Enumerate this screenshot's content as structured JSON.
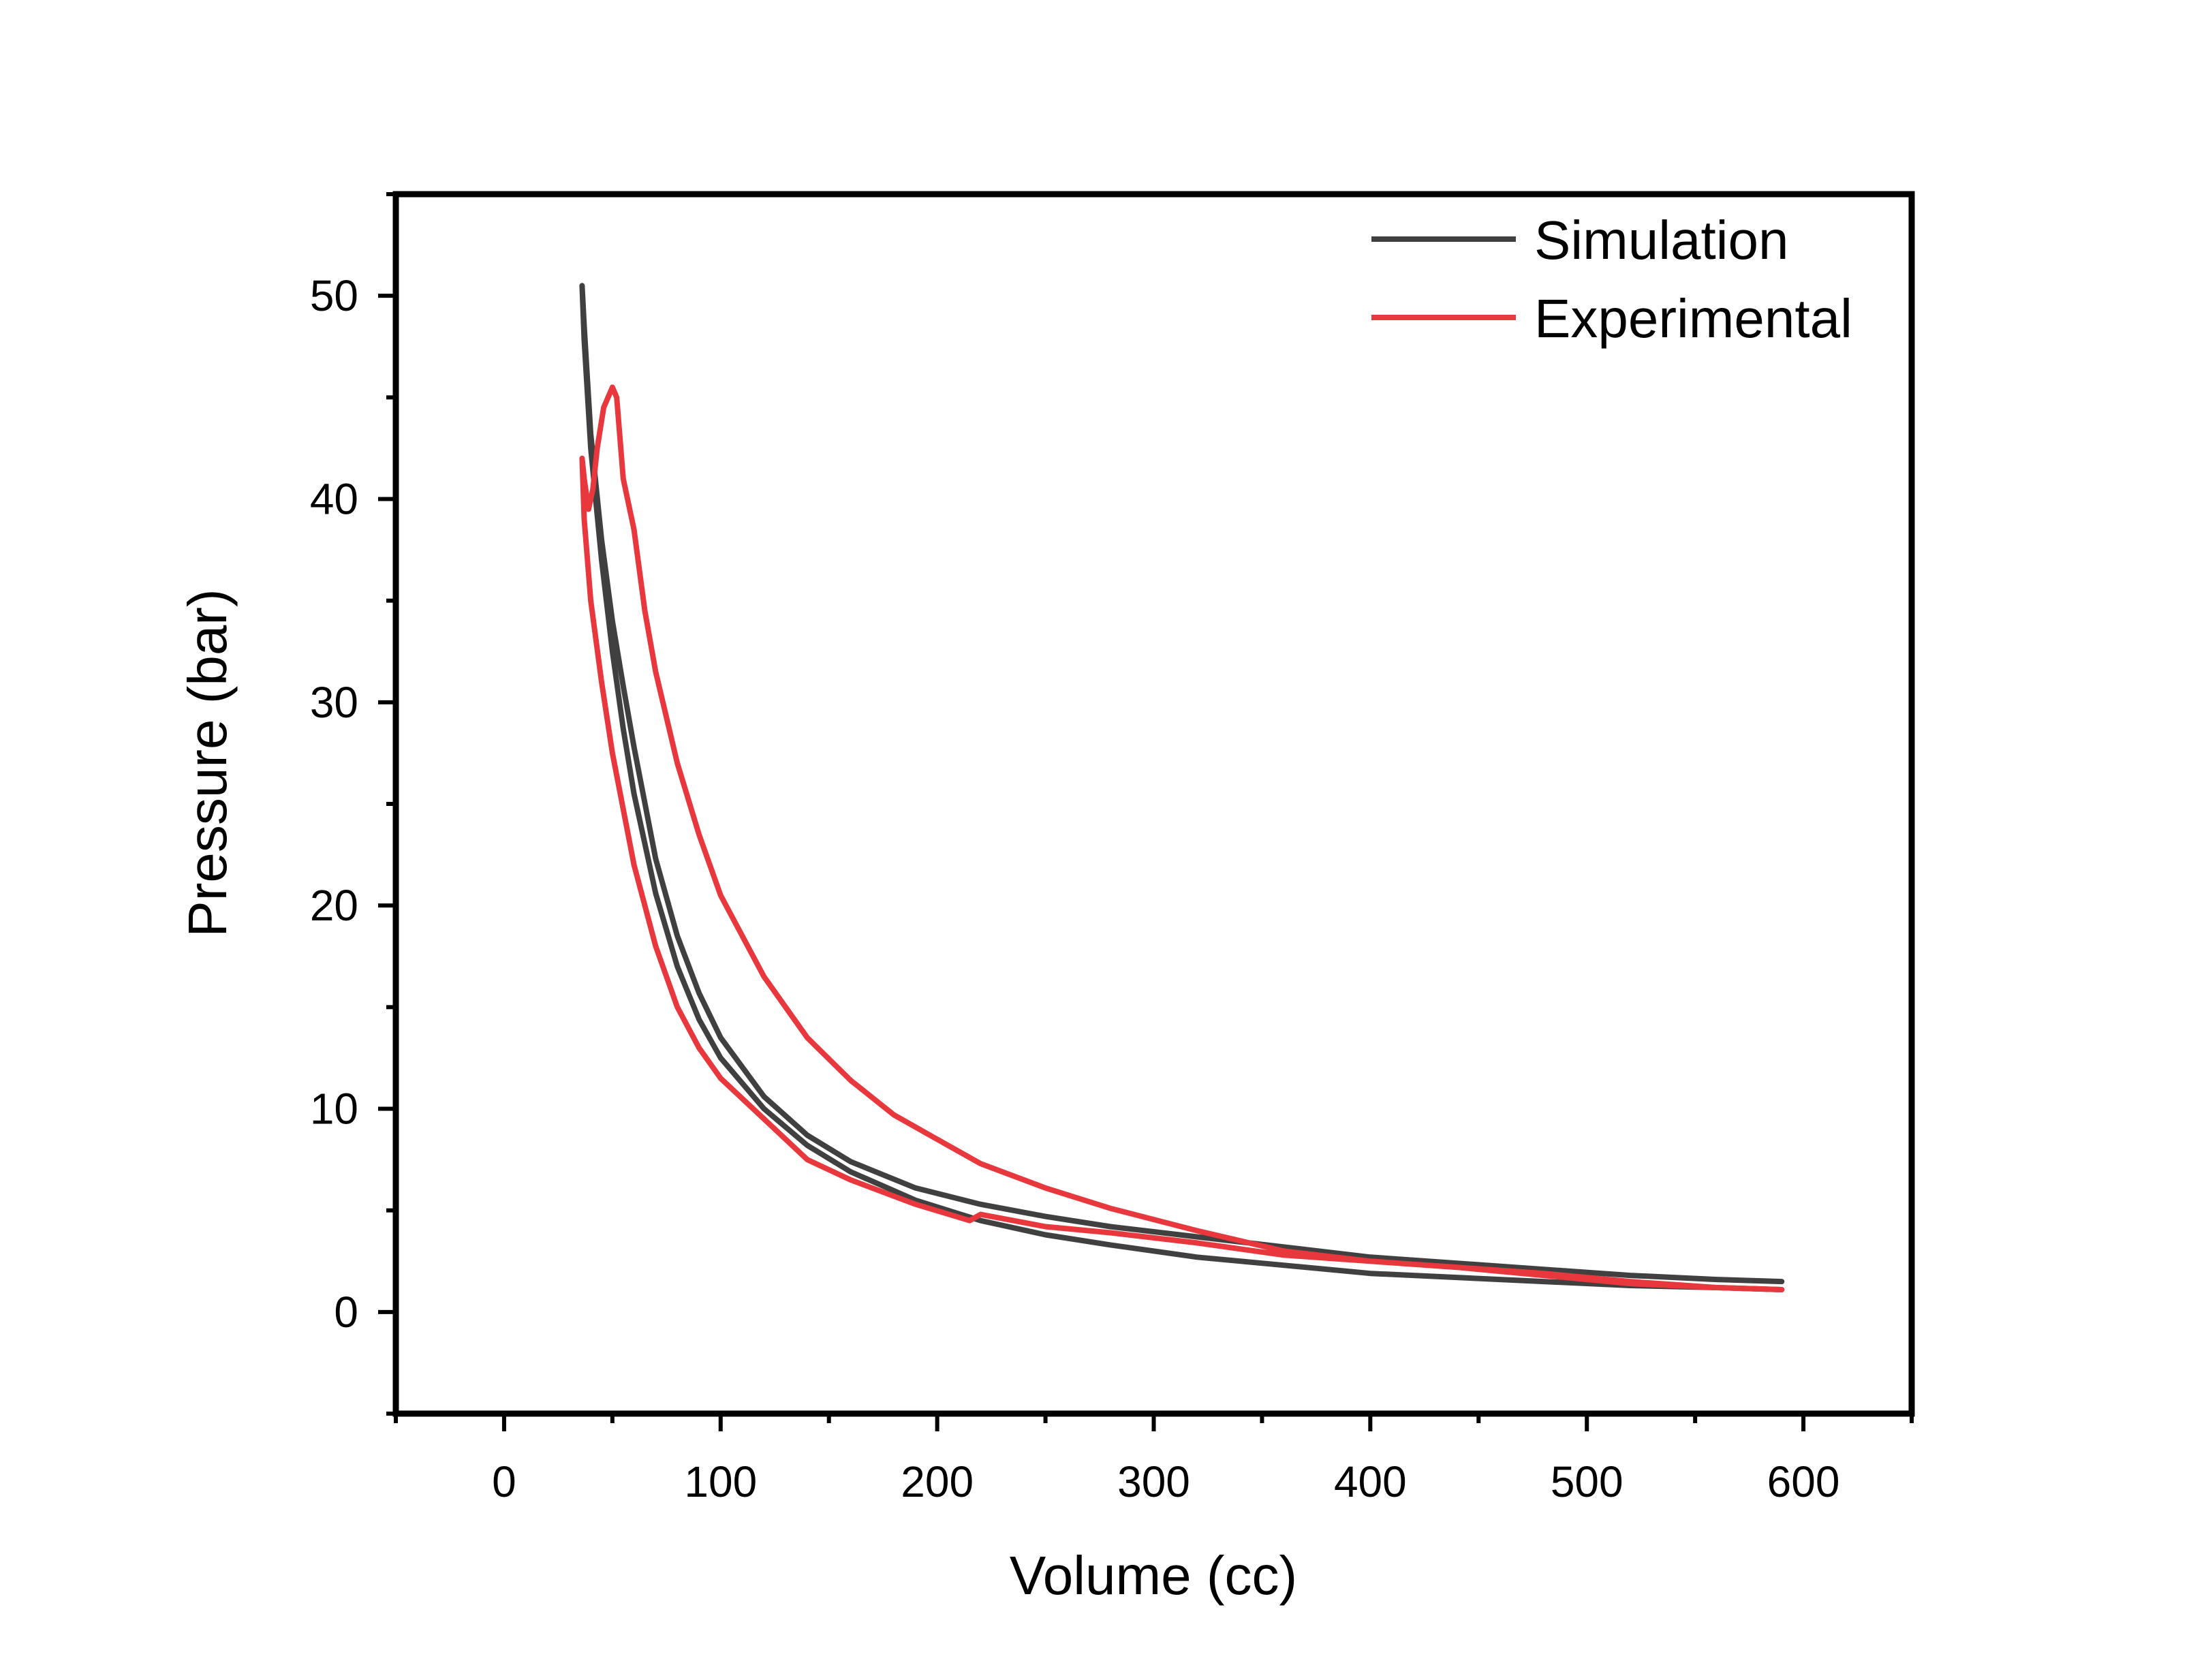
{
  "chart_data": {
    "type": "line",
    "title": "",
    "xlabel": "Volume (cc)",
    "ylabel": "Pressure (bar)",
    "xlim": [
      -50,
      650
    ],
    "ylim": [
      -5,
      55
    ],
    "xticks": [
      0,
      100,
      200,
      300,
      400,
      500,
      600
    ],
    "yticks": [
      0,
      10,
      20,
      30,
      40,
      50
    ],
    "grid": false,
    "legend_position": "top-right",
    "series": [
      {
        "name": "Simulation",
        "color": "#404040",
        "x": [
          590,
          560,
          520,
          480,
          440,
          400,
          360,
          320,
          280,
          250,
          220,
          190,
          160,
          140,
          120,
          100,
          90,
          80,
          70,
          60,
          55,
          50,
          45,
          40,
          37,
          36,
          37,
          40,
          45,
          50,
          55,
          60,
          70,
          80,
          90,
          100,
          120,
          140,
          160,
          190,
          220,
          250,
          280,
          320,
          360,
          400,
          440,
          480,
          520,
          560,
          590
        ],
        "y": [
          1.1,
          1.2,
          1.3,
          1.5,
          1.7,
          1.9,
          2.3,
          2.7,
          3.3,
          3.8,
          4.5,
          5.5,
          6.9,
          8.2,
          10.0,
          12.5,
          14.4,
          17.0,
          20.6,
          25.5,
          28.7,
          32.5,
          37.0,
          42.5,
          47.8,
          50.5,
          48.5,
          43.2,
          38.0,
          34.0,
          30.8,
          27.8,
          22.3,
          18.5,
          15.7,
          13.5,
          10.6,
          8.7,
          7.4,
          6.1,
          5.3,
          4.7,
          4.2,
          3.7,
          3.2,
          2.7,
          2.4,
          2.1,
          1.8,
          1.6,
          1.5
        ]
      },
      {
        "name": "Experimental",
        "color": "#E8383D",
        "x": [
          590,
          560,
          520,
          480,
          440,
          400,
          360,
          320,
          280,
          250,
          220,
          215,
          190,
          160,
          140,
          120,
          100,
          90,
          80,
          70,
          60,
          50,
          45,
          40,
          37,
          36,
          37,
          39,
          41,
          43,
          46,
          50,
          52,
          55,
          60,
          65,
          70,
          80,
          90,
          100,
          120,
          140,
          160,
          180,
          200,
          220,
          250,
          280,
          320,
          360,
          400,
          440,
          480,
          520,
          560,
          590
        ],
        "y": [
          1.1,
          1.2,
          1.4,
          1.8,
          2.2,
          2.5,
          2.8,
          3.4,
          3.9,
          4.2,
          4.8,
          4.5,
          5.3,
          6.5,
          7.5,
          9.5,
          11.5,
          13.0,
          15.0,
          18.0,
          22.0,
          27.5,
          31.0,
          35.0,
          39.0,
          42.0,
          41.0,
          39.5,
          40.5,
          42.5,
          44.5,
          45.5,
          45.0,
          41.0,
          38.5,
          34.5,
          31.5,
          27.0,
          23.5,
          20.5,
          16.5,
          13.5,
          11.4,
          9.7,
          8.5,
          7.3,
          6.1,
          5.1,
          4.0,
          3.0,
          2.5,
          2.2,
          1.9,
          1.5,
          1.2,
          1.1
        ]
      }
    ]
  }
}
